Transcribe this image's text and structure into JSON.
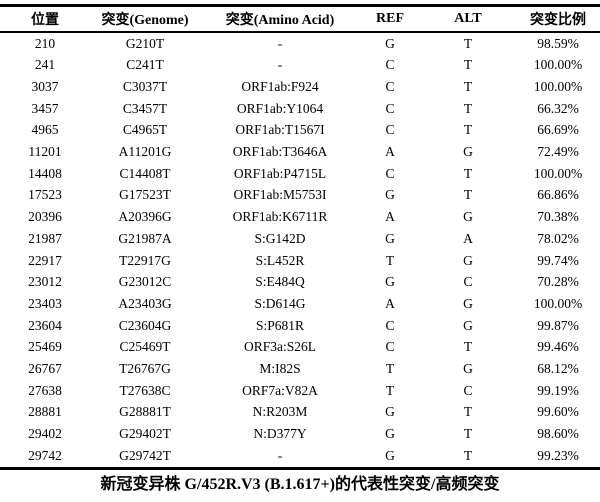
{
  "colors": {
    "text": "#000000",
    "background": "#ffffff",
    "rule": "#000000"
  },
  "table": {
    "columns": [
      {
        "key": "position",
        "label": "位置"
      },
      {
        "key": "genome",
        "label": "突变(Genome)"
      },
      {
        "key": "amino",
        "label": "突变(Amino Acid)"
      },
      {
        "key": "ref",
        "label": "REF"
      },
      {
        "key": "alt",
        "label": "ALT"
      },
      {
        "key": "ratio",
        "label": "突变比例"
      }
    ],
    "rows": [
      [
        "210",
        "G210T",
        "-",
        "G",
        "T",
        "98.59%"
      ],
      [
        "241",
        "C241T",
        "-",
        "C",
        "T",
        "100.00%"
      ],
      [
        "3037",
        "C3037T",
        "ORF1ab:F924",
        "C",
        "T",
        "100.00%"
      ],
      [
        "3457",
        "C3457T",
        "ORF1ab:Y1064",
        "C",
        "T",
        "66.32%"
      ],
      [
        "4965",
        "C4965T",
        "ORF1ab:T1567I",
        "C",
        "T",
        "66.69%"
      ],
      [
        "11201",
        "A11201G",
        "ORF1ab:T3646A",
        "A",
        "G",
        "72.49%"
      ],
      [
        "14408",
        "C14408T",
        "ORF1ab:P4715L",
        "C",
        "T",
        "100.00%"
      ],
      [
        "17523",
        "G17523T",
        "ORF1ab:M5753I",
        "G",
        "T",
        "66.86%"
      ],
      [
        "20396",
        "A20396G",
        "ORF1ab:K6711R",
        "A",
        "G",
        "70.38%"
      ],
      [
        "21987",
        "G21987A",
        "S:G142D",
        "G",
        "A",
        "78.02%"
      ],
      [
        "22917",
        "T22917G",
        "S:L452R",
        "T",
        "G",
        "99.74%"
      ],
      [
        "23012",
        "G23012C",
        "S:E484Q",
        "G",
        "C",
        "70.28%"
      ],
      [
        "23403",
        "A23403G",
        "S:D614G",
        "A",
        "G",
        "100.00%"
      ],
      [
        "23604",
        "C23604G",
        "S:P681R",
        "C",
        "G",
        "99.87%"
      ],
      [
        "25469",
        "C25469T",
        "ORF3a:S26L",
        "C",
        "T",
        "99.46%"
      ],
      [
        "26767",
        "T26767G",
        "M:I82S",
        "T",
        "G",
        "68.12%"
      ],
      [
        "27638",
        "T27638C",
        "ORF7a:V82A",
        "T",
        "C",
        "99.19%"
      ],
      [
        "28881",
        "G28881T",
        "N:R203M",
        "G",
        "T",
        "99.60%"
      ],
      [
        "29402",
        "G29402T",
        "N:D377Y",
        "G",
        "T",
        "98.60%"
      ],
      [
        "29742",
        "G29742T",
        "-",
        "G",
        "T",
        "99.23%"
      ]
    ]
  },
  "caption": "新冠变异株 G/452R.V3 (B.1.617+)的代表性突变/高频突变"
}
